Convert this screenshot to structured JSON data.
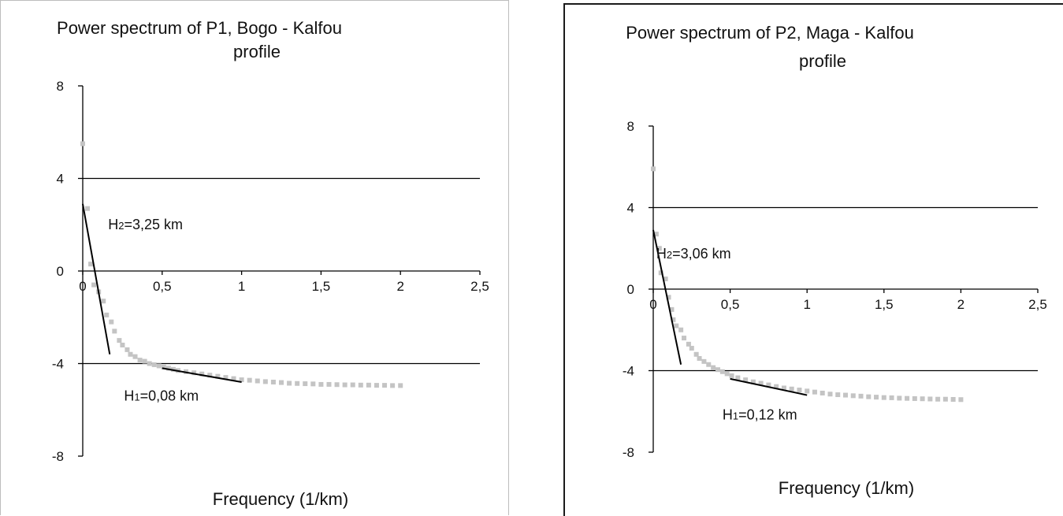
{
  "chart_data": [
    {
      "type": "scatter",
      "title": "Power spectrum of P1, Bogo - Kalfou",
      "title_line2": "profile",
      "xlabel": "Frequency (1/km)",
      "ylabel": "",
      "xlim": [
        0,
        2.5
      ],
      "ylim": [
        -8,
        8
      ],
      "x_ticks": [
        0,
        0.5,
        1,
        1.5,
        2,
        2.5
      ],
      "x_tick_labels": [
        "0",
        "0,5",
        "1",
        "1,5",
        "2",
        "2,5"
      ],
      "y_ticks": [
        8,
        4,
        0,
        -4,
        -8
      ],
      "y_tick_labels": [
        "8",
        "4",
        "0",
        "-4",
        "-8"
      ],
      "gridlines_y": [
        4,
        0,
        -4
      ],
      "grid": "horizontal at 4, 0, -4",
      "legend": "none",
      "colors": {
        "points": "#c4c4c4",
        "fit_lines": "#000000",
        "grid": "#000000"
      },
      "series": [
        {
          "points": [
            [
              0.0,
              5.5
            ],
            [
              0.03,
              2.7
            ],
            [
              0.05,
              0.3
            ],
            [
              0.07,
              -0.6
            ],
            [
              0.1,
              -0.9
            ],
            [
              0.13,
              -1.3
            ],
            [
              0.15,
              -1.9
            ],
            [
              0.18,
              -2.2
            ],
            [
              0.2,
              -2.6
            ],
            [
              0.23,
              -3.0
            ],
            [
              0.25,
              -3.2
            ],
            [
              0.28,
              -3.4
            ],
            [
              0.3,
              -3.6
            ],
            [
              0.33,
              -3.7
            ],
            [
              0.36,
              -3.85
            ],
            [
              0.39,
              -3.9
            ],
            [
              0.42,
              -4.0
            ],
            [
              0.45,
              -4.05
            ],
            [
              0.48,
              -4.1
            ],
            [
              0.51,
              -4.15
            ],
            [
              0.54,
              -4.2
            ],
            [
              0.57,
              -4.25
            ],
            [
              0.6,
              -4.3
            ],
            [
              0.65,
              -4.35
            ],
            [
              0.7,
              -4.4
            ],
            [
              0.75,
              -4.45
            ],
            [
              0.8,
              -4.5
            ],
            [
              0.85,
              -4.55
            ],
            [
              0.9,
              -4.6
            ],
            [
              0.95,
              -4.65
            ],
            [
              1.0,
              -4.7
            ],
            [
              1.05,
              -4.72
            ],
            [
              1.1,
              -4.75
            ],
            [
              1.15,
              -4.78
            ],
            [
              1.2,
              -4.8
            ],
            [
              1.25,
              -4.82
            ],
            [
              1.3,
              -4.85
            ],
            [
              1.35,
              -4.86
            ],
            [
              1.4,
              -4.87
            ],
            [
              1.45,
              -4.88
            ],
            [
              1.5,
              -4.9
            ],
            [
              1.55,
              -4.9
            ],
            [
              1.6,
              -4.91
            ],
            [
              1.65,
              -4.92
            ],
            [
              1.7,
              -4.92
            ],
            [
              1.75,
              -4.93
            ],
            [
              1.8,
              -4.93
            ],
            [
              1.85,
              -4.94
            ],
            [
              1.9,
              -4.94
            ],
            [
              1.95,
              -4.95
            ],
            [
              2.0,
              -4.95
            ]
          ]
        }
      ],
      "fit_lines": [
        {
          "x": [
            0.0,
            0.17
          ],
          "y": [
            2.9,
            -3.6
          ]
        },
        {
          "x": [
            0.5,
            1.0
          ],
          "y": [
            -4.2,
            -4.8
          ]
        }
      ],
      "annotations": [
        {
          "main": "H",
          "sub": "2",
          "rest": "=3,25 km",
          "x": 0.16,
          "y": 1.8
        },
        {
          "main": "H",
          "sub": "1",
          "rest": "=0,08 km",
          "x": 0.26,
          "y": -5.6
        }
      ]
    },
    {
      "type": "scatter",
      "title": "Power spectrum of P2, Maga - Kalfou",
      "title_line2": "profile",
      "xlabel": "Frequency (1/km)",
      "ylabel": "",
      "xlim": [
        0,
        2.5
      ],
      "ylim": [
        -8,
        8
      ],
      "x_ticks": [
        0,
        0.5,
        1,
        1.5,
        2,
        2.5
      ],
      "x_tick_labels": [
        "0",
        "0,5",
        "1",
        "1,5",
        "2",
        "2,5"
      ],
      "y_ticks": [
        8,
        4,
        0,
        -4,
        -8
      ],
      "y_tick_labels": [
        "8",
        "4",
        "0",
        "-4",
        "-8"
      ],
      "gridlines_y": [
        4,
        0,
        -4
      ],
      "grid": "horizontal at 4, 0, -4",
      "legend": "none",
      "colors": {
        "points": "#c4c4c4",
        "fit_lines": "#000000",
        "grid": "#000000"
      },
      "series": [
        {
          "points": [
            [
              0.0,
              5.9
            ],
            [
              0.02,
              2.7
            ],
            [
              0.04,
              2.0
            ],
            [
              0.05,
              0.8
            ],
            [
              0.08,
              0.5
            ],
            [
              0.1,
              -0.4
            ],
            [
              0.12,
              -1.0
            ],
            [
              0.13,
              -1.5
            ],
            [
              0.15,
              -1.8
            ],
            [
              0.18,
              -2.0
            ],
            [
              0.2,
              -2.4
            ],
            [
              0.23,
              -2.7
            ],
            [
              0.25,
              -2.9
            ],
            [
              0.28,
              -3.2
            ],
            [
              0.3,
              -3.4
            ],
            [
              0.33,
              -3.55
            ],
            [
              0.36,
              -3.7
            ],
            [
              0.39,
              -3.85
            ],
            [
              0.42,
              -3.95
            ],
            [
              0.45,
              -4.05
            ],
            [
              0.48,
              -4.15
            ],
            [
              0.51,
              -4.25
            ],
            [
              0.55,
              -4.35
            ],
            [
              0.6,
              -4.45
            ],
            [
              0.65,
              -4.55
            ],
            [
              0.7,
              -4.62
            ],
            [
              0.75,
              -4.7
            ],
            [
              0.8,
              -4.78
            ],
            [
              0.85,
              -4.85
            ],
            [
              0.9,
              -4.9
            ],
            [
              0.95,
              -4.95
            ],
            [
              1.0,
              -5.0
            ],
            [
              1.05,
              -5.05
            ],
            [
              1.1,
              -5.1
            ],
            [
              1.15,
              -5.15
            ],
            [
              1.2,
              -5.18
            ],
            [
              1.25,
              -5.2
            ],
            [
              1.3,
              -5.23
            ],
            [
              1.35,
              -5.25
            ],
            [
              1.4,
              -5.28
            ],
            [
              1.45,
              -5.3
            ],
            [
              1.5,
              -5.32
            ],
            [
              1.55,
              -5.33
            ],
            [
              1.6,
              -5.35
            ],
            [
              1.65,
              -5.36
            ],
            [
              1.7,
              -5.37
            ],
            [
              1.75,
              -5.38
            ],
            [
              1.8,
              -5.39
            ],
            [
              1.85,
              -5.4
            ],
            [
              1.9,
              -5.4
            ],
            [
              1.95,
              -5.41
            ],
            [
              2.0,
              -5.42
            ]
          ]
        }
      ],
      "fit_lines": [
        {
          "x": [
            0.0,
            0.18
          ],
          "y": [
            2.9,
            -3.7
          ]
        },
        {
          "x": [
            0.5,
            1.0
          ],
          "y": [
            -4.4,
            -5.2
          ]
        }
      ],
      "annotations": [
        {
          "main": "H",
          "sub": "2",
          "rest": "=3,06 km",
          "x": 0.02,
          "y": 1.5
        },
        {
          "main": "H",
          "sub": "1",
          "rest": "=0,12 km",
          "x": 0.45,
          "y": -6.4
        }
      ]
    }
  ]
}
